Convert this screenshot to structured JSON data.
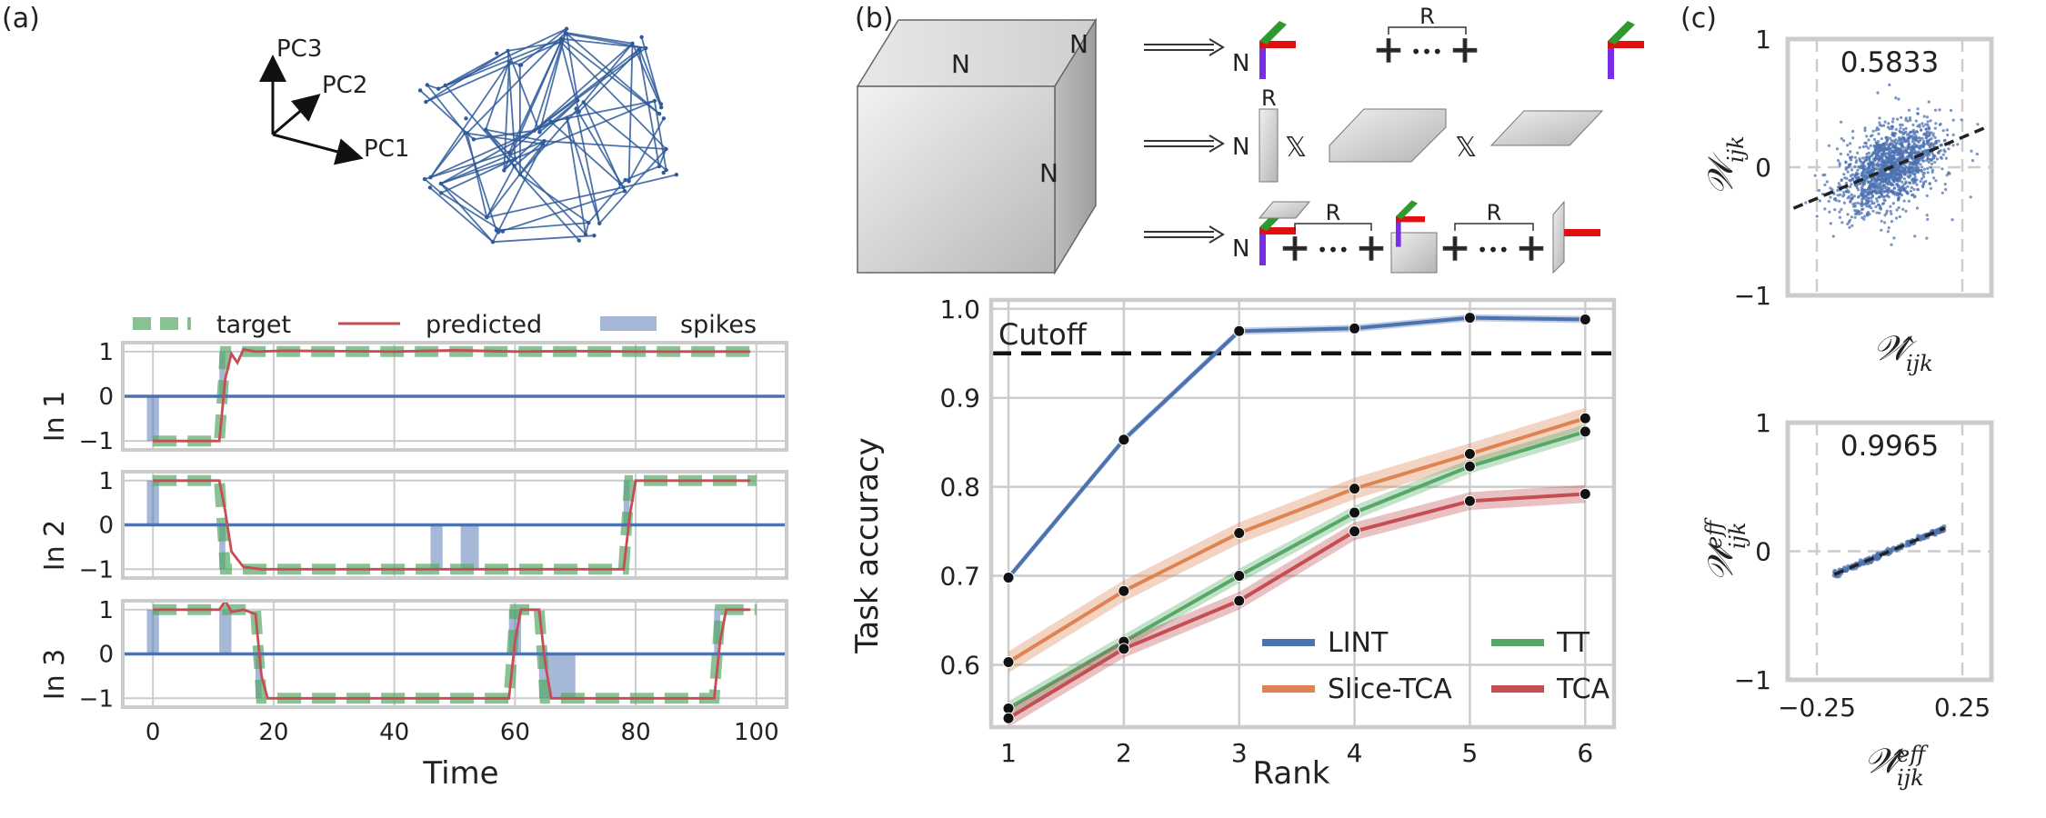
{
  "panel_labels": {
    "a": "(a)",
    "b": "(b)",
    "c": "(c)"
  },
  "colors": {
    "blue": "#4c72b0",
    "green": "#55a868",
    "red": "#c44e52",
    "orange": "#dd8452",
    "grid": "#cccccc",
    "frame": "#cccccc",
    "network": "#2f5b9a",
    "cube": "#bdbdbd",
    "ldot": "#2f6ee8",
    "purple": "#7a2ee8",
    "tensor_red": "#e01010",
    "tensor_green": "#2e9a2e"
  },
  "panel_a": {
    "pc_axes": [
      "PC1",
      "PC2",
      "PC3"
    ],
    "legend": [
      "target",
      "predicted",
      "spikes"
    ],
    "xlabel": "Time",
    "xticks": [
      "0",
      "20",
      "40",
      "60",
      "80",
      "100"
    ],
    "yticks": [
      "1",
      "0",
      "−1"
    ]
  },
  "panel_b_diagram": {
    "cube_labels": [
      "N",
      "N",
      "N"
    ],
    "row_n": "N",
    "rank_label": "R",
    "times_symbol": "𝕏",
    "dots": "•••"
  },
  "chart_data": [
    {
      "type": "line",
      "title": "",
      "xlabel": "Time",
      "ylabel": "",
      "xlim": [
        -5,
        105
      ],
      "ylim": [
        -1.2,
        1.2
      ],
      "grid": true,
      "legend": "top, outside",
      "rows": [
        {
          "label": "In 1",
          "target": {
            "name": "target",
            "x": [
              0,
              11,
              12,
              100
            ],
            "y": [
              -1,
              -1,
              1,
              1
            ]
          },
          "predicted": {
            "name": "predicted",
            "x": [
              0,
              11,
              12,
              13,
              14,
              15,
              17,
              22,
              40,
              50,
              60,
              70,
              80,
              90,
              99
            ],
            "y": [
              -1,
              -1,
              0.4,
              0.95,
              0.75,
              1.05,
              1.0,
              1.02,
              1.0,
              1.03,
              1.0,
              1.01,
              1.0,
              1.0,
              1.0
            ]
          },
          "spikes": [
            [
              -1,
              1,
              -1
            ],
            [
              11,
              12,
              1
            ]
          ]
        },
        {
          "label": "In 2",
          "target": {
            "name": "target",
            "x": [
              0,
              11,
              12,
              78,
              79,
              100
            ],
            "y": [
              1,
              1,
              -1,
              -1,
              1,
              1
            ]
          },
          "predicted": {
            "name": "predicted",
            "x": [
              0,
              5,
              11,
              12,
              13,
              15,
              18,
              30,
              50,
              70,
              78,
              79,
              80,
              90,
              99
            ],
            "y": [
              1,
              1.0,
              1.0,
              0.3,
              -0.6,
              -0.95,
              -1.0,
              -1.0,
              -1.0,
              -1.0,
              -1.0,
              0.2,
              1.0,
              1.0,
              1.0
            ]
          },
          "spikes": [
            [
              -1,
              1,
              1
            ],
            [
              11,
              12,
              -1
            ],
            [
              46,
              48,
              -1
            ],
            [
              51,
              54,
              -1
            ],
            [
              78,
              79,
              1
            ]
          ]
        },
        {
          "label": "In 3",
          "target": {
            "name": "target",
            "x": [
              0,
              17,
              18,
              59,
              60,
              64,
              65,
              93,
              94,
              100
            ],
            "y": [
              1,
              1,
              -1,
              -1,
              1,
              1,
              -1,
              -1,
              1,
              1
            ]
          },
          "predicted": {
            "name": "predicted",
            "x": [
              0,
              5,
              11,
              12,
              13,
              15,
              17,
              18,
              19,
              30,
              50,
              59,
              60,
              61,
              64,
              65,
              66,
              80,
              93,
              94,
              95,
              99
            ],
            "y": [
              1,
              1.0,
              1.0,
              1.2,
              0.95,
              1.0,
              0.9,
              -0.5,
              -1.0,
              -1.0,
              -1.0,
              -1.0,
              0.3,
              1.0,
              1.0,
              -0.2,
              -1.0,
              -1.0,
              -1.0,
              0.3,
              1.0,
              1.0
            ]
          },
          "spikes": [
            [
              -1,
              1,
              1
            ],
            [
              11,
              13,
              1
            ],
            [
              17,
              18,
              -1
            ],
            [
              59,
              61,
              1
            ],
            [
              64,
              66,
              -1
            ],
            [
              66,
              68,
              -1
            ],
            [
              68,
              70,
              -1
            ],
            [
              93,
              94,
              1
            ]
          ]
        }
      ]
    },
    {
      "type": "line",
      "title": "",
      "xlabel": "Rank",
      "ylabel": "Task accuracy",
      "categories": [
        1,
        2,
        3,
        4,
        5,
        6
      ],
      "xlim": [
        0.85,
        6.25
      ],
      "ylim": [
        0.53,
        1.01
      ],
      "yticks": [
        0.6,
        0.7,
        0.8,
        0.9,
        1.0
      ],
      "grid": true,
      "legend": "lower-right",
      "cutoff": {
        "label": "Cutoff",
        "value": 0.95
      },
      "series": [
        {
          "name": "LINT",
          "color": "blue",
          "values": [
            0.698,
            0.853,
            0.975,
            0.978,
            0.99,
            0.988
          ],
          "band": 0.004
        },
        {
          "name": "TT",
          "color": "green",
          "values": [
            0.551,
            0.626,
            0.7,
            0.771,
            0.823,
            0.862
          ],
          "band": 0.008
        },
        {
          "name": "Slice-TCA",
          "color": "orange",
          "values": [
            0.603,
            0.683,
            0.748,
            0.798,
            0.837,
            0.877
          ],
          "band": 0.012
        },
        {
          "name": "TCA",
          "color": "red",
          "values": [
            0.54,
            0.618,
            0.672,
            0.75,
            0.784,
            0.792
          ],
          "band": 0.01
        }
      ]
    },
    {
      "type": "scatter",
      "xlabel": "Ŵ_ijk",
      "ylabel": "W_ijk",
      "annotation": "0.5833",
      "xlim": [
        -0.35,
        0.35
      ],
      "ylim": [
        -1,
        1
      ],
      "yticks": [
        "1",
        "0",
        "−1"
      ],
      "fit_line": {
        "x": [
          -0.33,
          0.33
        ],
        "y": [
          -0.32,
          0.31
        ]
      },
      "points_summary": {
        "n_visible": "dense cloud",
        "slope": 0.95,
        "spread": 0.14
      }
    },
    {
      "type": "scatter",
      "xlabel": "Ŵ^eff_ijk",
      "ylabel": "W^eff_ijk",
      "annotation": "0.9965",
      "xlim": [
        -0.35,
        0.35
      ],
      "ylim": [
        -1,
        1
      ],
      "xticks": [
        "−0.25",
        "0.25"
      ],
      "yticks": [
        "1",
        "0",
        "−1"
      ],
      "fit_line": {
        "x": [
          -0.19,
          0.19
        ],
        "y": [
          -0.18,
          0.18
        ]
      },
      "points_summary": {
        "slope": 0.95,
        "spread": 0.01
      }
    }
  ],
  "axis_text": {
    "ain1": "In 1",
    "ain2": "In 2",
    "ain3": "In 3",
    "b_xticks": [
      "1",
      "2",
      "3",
      "4",
      "5",
      "6"
    ],
    "b_yticks": [
      "0.6",
      "0.7",
      "0.8",
      "0.9",
      "1.0"
    ],
    "c_xticks": [
      "−0.25",
      "0.25"
    ],
    "c_yticks": [
      "1",
      "0",
      "−1"
    ],
    "c_top_xlabel": "𝒲̂",
    "c_top_xsub": "ijk",
    "c_top_ylabel": "𝒲",
    "c_top_ysub": "ijk",
    "c_bot_xlabel": "𝒲̂",
    "c_bot_xsub": "ijk",
    "c_bot_xsup": "eff",
    "c_bot_ylabel": "𝒲",
    "c_bot_ysub": "ijk",
    "c_bot_ysup": "eff"
  }
}
